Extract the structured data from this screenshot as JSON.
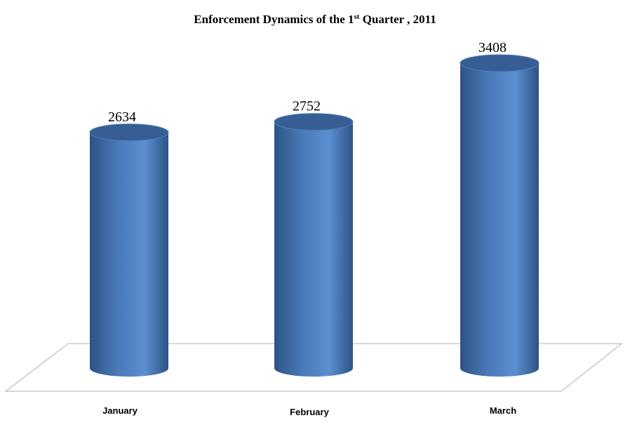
{
  "chart_data": {
    "type": "bar",
    "title": {
      "prefix": "Enforcement Dynamics of the  1",
      "sup": "st",
      "suffix": " Quarter , 2011"
    },
    "categories": [
      "January",
      "February",
      "March"
    ],
    "values": [
      2634,
      2752,
      3408
    ],
    "ylim": [
      0,
      3408
    ],
    "grid": false,
    "legend": "none",
    "xlabel": "",
    "ylabel": "",
    "colors": {
      "bar_dark": "#2d5385",
      "bar_mid": "#4a79b8",
      "bar_light": "#5b8fd1",
      "bar_top": "#365e95",
      "floor_line": "#b0b0b0"
    }
  }
}
